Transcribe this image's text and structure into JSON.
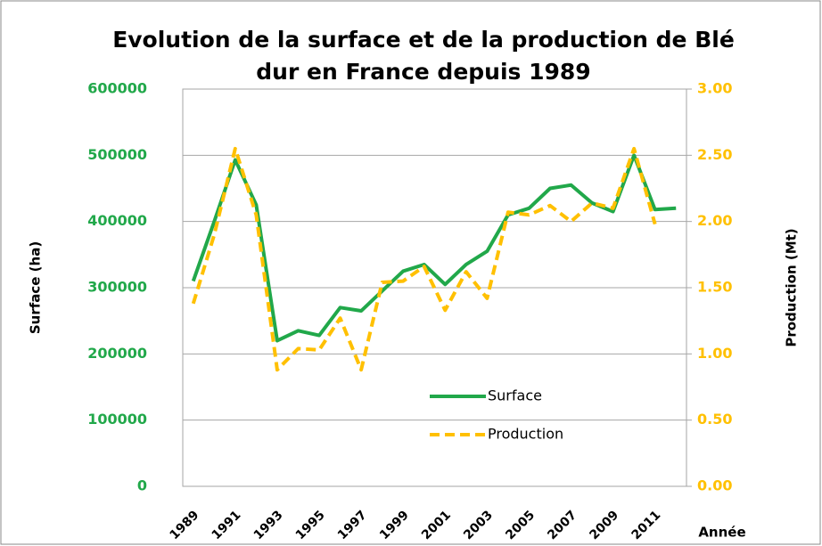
{
  "chart_data": {
    "type": "line",
    "title": [
      "Evolution de la surface et de la production de Blé",
      "dur en France depuis 1989"
    ],
    "ylabel": "Surface (ha)",
    "y2label": "Production (Mt)",
    "xlabel": "Année",
    "categories": [
      "1989",
      null,
      "1991",
      null,
      "1993",
      null,
      "1995",
      null,
      "1997",
      null,
      "1999",
      null,
      "2001",
      null,
      "2003",
      null,
      "2005",
      null,
      "2007",
      null,
      "2009",
      null,
      "2011",
      null
    ],
    "series": [
      {
        "name": "Surface",
        "color": "#21a84a",
        "values": [
          310000,
          400000,
          493000,
          425000,
          220000,
          235000,
          228000,
          270000,
          265000,
          295000,
          325000,
          335000,
          305000,
          335000,
          355000,
          410000,
          420000,
          450000,
          455000,
          428000,
          415000,
          500000,
          418000,
          420000
        ]
      },
      {
        "name": "Production",
        "color": "#ffc000",
        "axis": "y2",
        "dashed": true,
        "values": [
          1.38,
          1.9,
          2.55,
          2.05,
          0.88,
          1.04,
          1.03,
          1.27,
          0.88,
          1.54,
          1.55,
          1.66,
          1.33,
          1.62,
          1.42,
          2.07,
          2.05,
          2.12,
          2.0,
          2.14,
          2.1,
          2.55,
          1.98,
          null
        ]
      }
    ],
    "ylim": [
      0,
      600000
    ],
    "yticks": [
      0,
      100000,
      200000,
      300000,
      400000,
      500000,
      600000
    ],
    "y2lim": [
      0,
      3
    ],
    "y2ticks": [
      {
        "value": 0,
        "label": "0.00"
      },
      {
        "value": 0.5,
        "label": "0.50"
      },
      {
        "value": 1,
        "label": "1.00"
      },
      {
        "value": 1.5,
        "label": "1.50"
      },
      {
        "value": 2,
        "label": "2.00"
      },
      {
        "value": 2.5,
        "label": "2.50"
      },
      {
        "value": 3,
        "label": "3.00"
      }
    ],
    "grid": true
  }
}
